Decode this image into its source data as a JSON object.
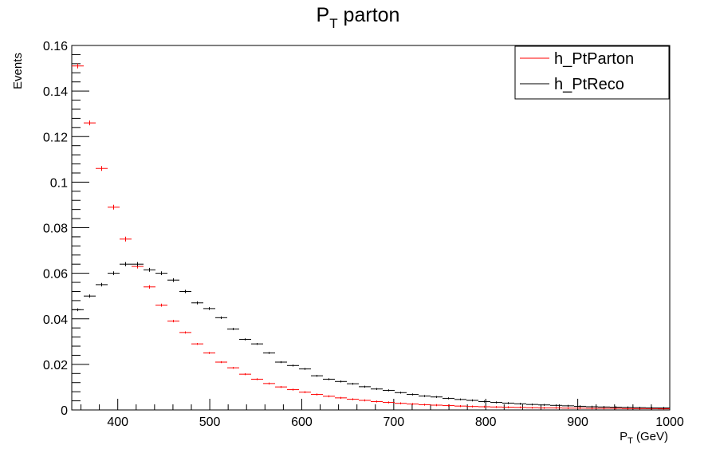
{
  "chart_data": {
    "type": "histogram",
    "title": "P",
    "title_subscript": "T",
    "title_suffix": " parton",
    "xlabel": "P",
    "xlabel_subscript": "T",
    "xlabel_suffix": " (GeV)",
    "ylabel": "Events",
    "xlim": [
      350,
      1000
    ],
    "ylim": [
      0,
      0.16
    ],
    "xticks": [
      400,
      500,
      600,
      700,
      800,
      900,
      1000
    ],
    "yticks": [
      0,
      0.02,
      0.04,
      0.06,
      0.08,
      0.1,
      0.12,
      0.14,
      0.16
    ],
    "ytick_labels": [
      "0",
      "0.02",
      "0.04",
      "0.06",
      "0.08",
      "0.1",
      "0.12",
      "0.14",
      "0.16"
    ],
    "grid": false,
    "legend_position": "top-right",
    "bin_width": 13,
    "series": [
      {
        "name": "h_PtParton",
        "color": "#ff0000",
        "bin_start": 350,
        "values": [
          0.151,
          0.126,
          0.106,
          0.089,
          0.075,
          0.063,
          0.054,
          0.046,
          0.039,
          0.034,
          0.029,
          0.025,
          0.021,
          0.0185,
          0.0157,
          0.0135,
          0.0116,
          0.0101,
          0.0089,
          0.0078,
          0.0068,
          0.006,
          0.0053,
          0.0047,
          0.0042,
          0.0037,
          0.0033,
          0.0029,
          0.0026,
          0.0023,
          0.0021,
          0.0019,
          0.0017,
          0.0015,
          0.0014,
          0.0013,
          0.0012,
          0.0011,
          0.001,
          0.0009,
          0.0009,
          0.0008,
          0.0008,
          0.0007,
          0.0007,
          0.0007,
          0.0006,
          0.0006,
          0.0006,
          0.0005
        ]
      },
      {
        "name": "h_PtReco",
        "color": "#000000",
        "bin_start": 350,
        "values": [
          0.044,
          0.05,
          0.055,
          0.06,
          0.064,
          0.064,
          0.0615,
          0.06,
          0.057,
          0.052,
          0.047,
          0.0445,
          0.0405,
          0.0355,
          0.031,
          0.029,
          0.025,
          0.021,
          0.0195,
          0.018,
          0.015,
          0.0135,
          0.0125,
          0.0115,
          0.0102,
          0.0092,
          0.0086,
          0.0076,
          0.0068,
          0.0061,
          0.0057,
          0.0051,
          0.0046,
          0.0042,
          0.0037,
          0.0033,
          0.003,
          0.0027,
          0.0024,
          0.0022,
          0.002,
          0.0018,
          0.0016,
          0.0014,
          0.0013,
          0.0012,
          0.0011,
          0.001,
          0.0009,
          0.0009
        ]
      }
    ]
  }
}
